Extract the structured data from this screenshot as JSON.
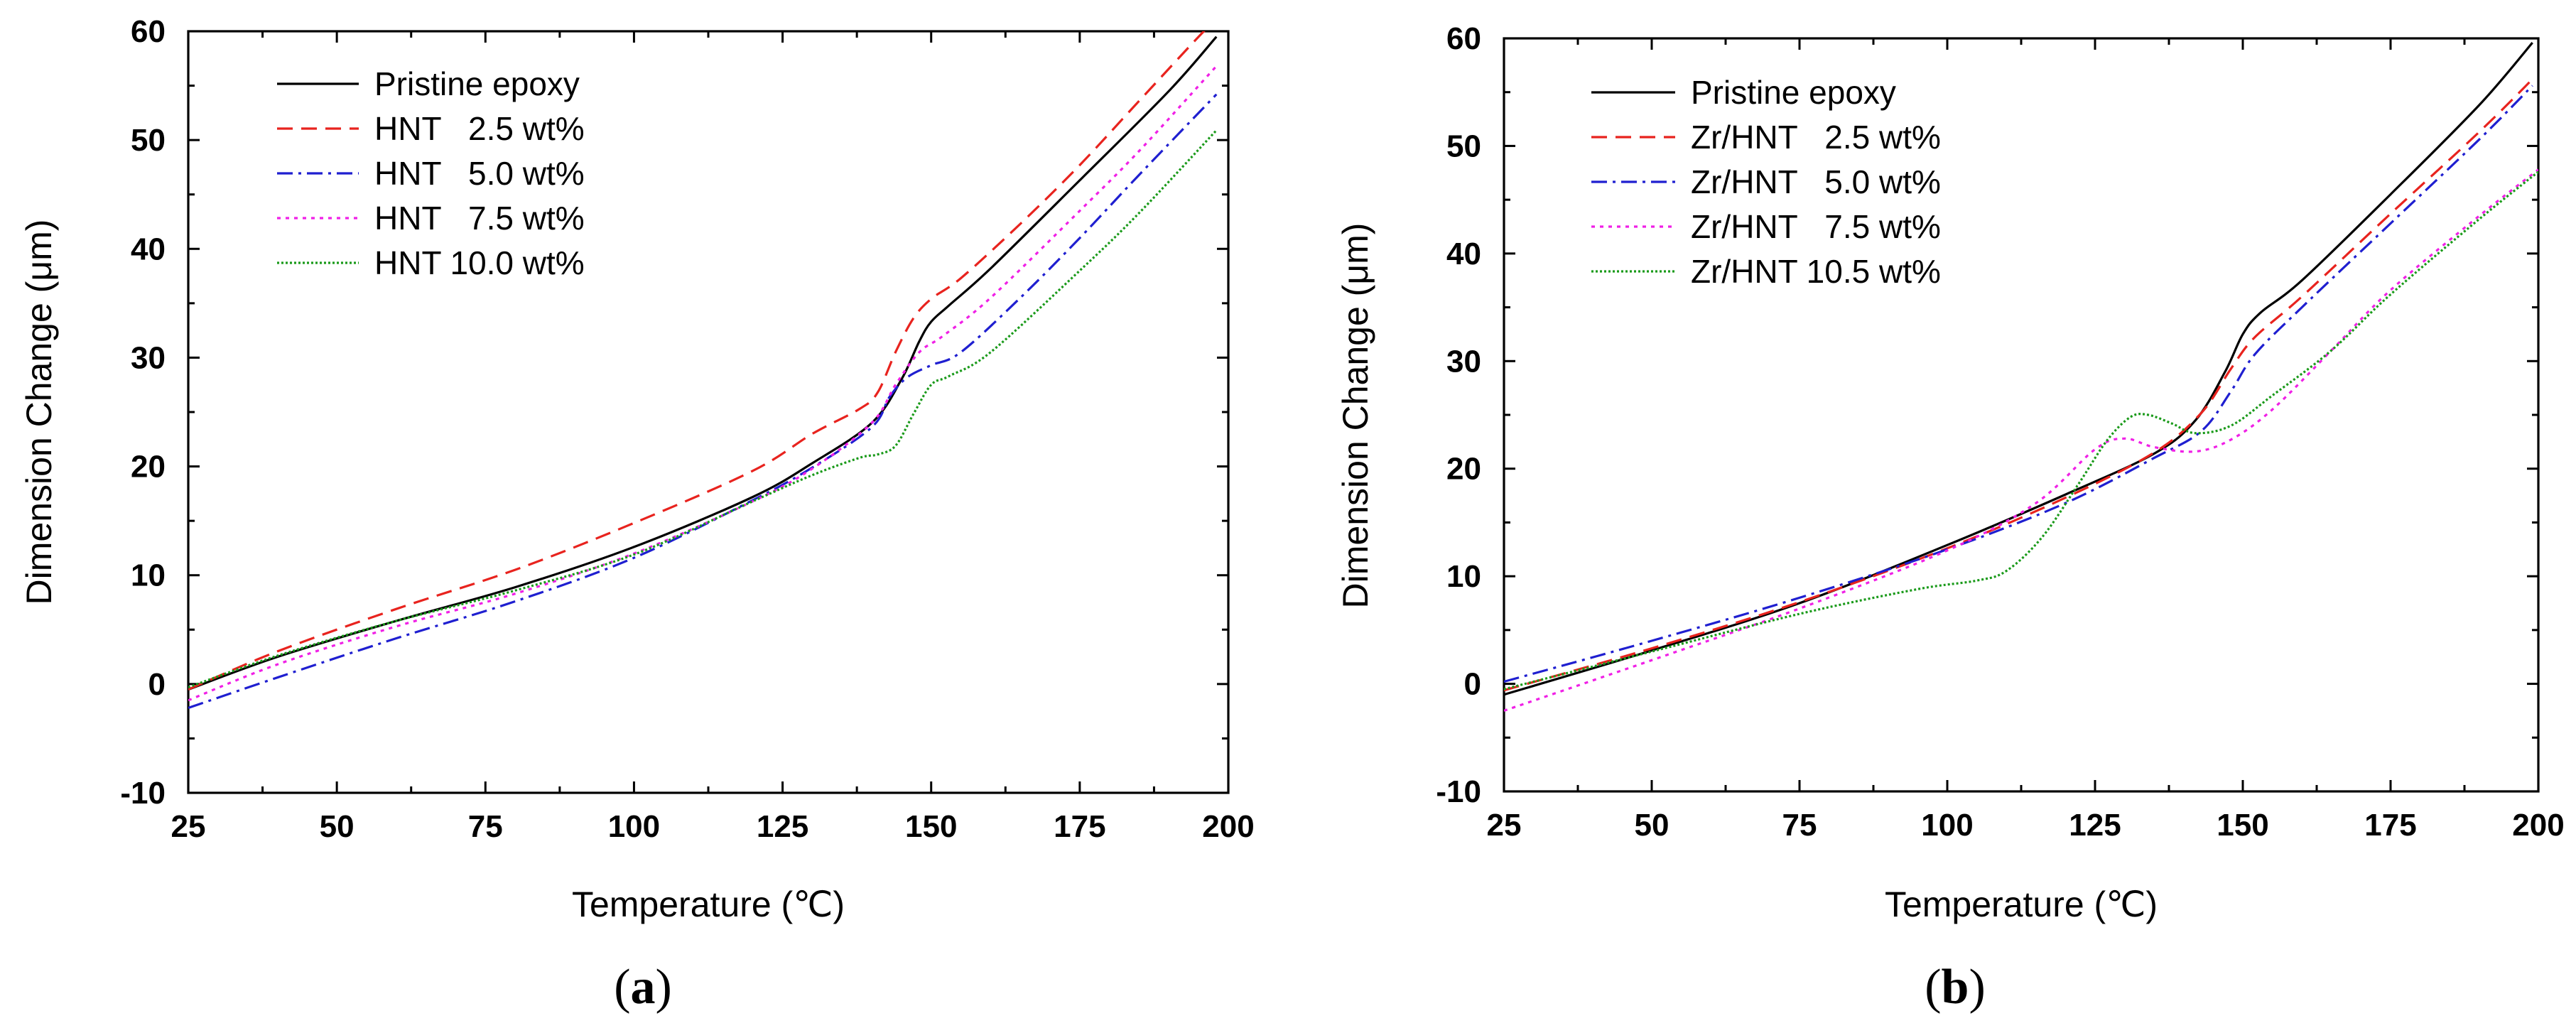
{
  "chart_data": [
    {
      "type": "line",
      "panel": "a",
      "caption_letter": "a",
      "xlabel": "Temperature (℃)",
      "ylabel": "Dimension Change (μm)",
      "xlim": [
        25,
        200
      ],
      "ylim": [
        -10,
        60
      ],
      "xticks": [
        25,
        50,
        75,
        100,
        125,
        150,
        175,
        200
      ],
      "yticks": [
        -10,
        0,
        10,
        20,
        30,
        40,
        50,
        60
      ],
      "legend_position": "top-left",
      "series": [
        {
          "name": "Pristine epoxy",
          "color": "#000000",
          "dash": "solid",
          "points": [
            [
              25,
              -0.5
            ],
            [
              40,
              2.5
            ],
            [
              60,
              5.8
            ],
            [
              80,
              8.9
            ],
            [
              100,
              12.6
            ],
            [
              120,
              17.2
            ],
            [
              130,
              20.3
            ],
            [
              140,
              24.0
            ],
            [
              145,
              28.0
            ],
            [
              148,
              31.5
            ],
            [
              150,
              33.3
            ],
            [
              153,
              34.8
            ],
            [
              160,
              38.2
            ],
            [
              175,
              46.3
            ],
            [
              190,
              54.5
            ],
            [
              198,
              59.5
            ]
          ]
        },
        {
          "name": "HNT   2.5 wt%",
          "color": "#e8231e",
          "dash": "dash",
          "points": [
            [
              25,
              -0.5
            ],
            [
              40,
              3.0
            ],
            [
              60,
              6.9
            ],
            [
              80,
              10.5
            ],
            [
              100,
              14.8
            ],
            [
              120,
              19.6
            ],
            [
              130,
              23.0
            ],
            [
              138,
              25.3
            ],
            [
              141,
              26.8
            ],
            [
              144,
              30.5
            ],
            [
              147,
              33.6
            ],
            [
              150,
              35.4
            ],
            [
              155,
              37.3
            ],
            [
              165,
              42.3
            ],
            [
              175,
              47.7
            ],
            [
              185,
              53.6
            ],
            [
              195,
              59.5
            ],
            [
              197,
              60.5
            ]
          ]
        },
        {
          "name": "HNT   5.0 wt%",
          "color": "#1f1fd0",
          "dash": "dashdot",
          "points": [
            [
              25,
              -2.2
            ],
            [
              40,
              0.6
            ],
            [
              60,
              4.2
            ],
            [
              80,
              7.6
            ],
            [
              100,
              11.6
            ],
            [
              120,
              16.9
            ],
            [
              130,
              19.9
            ],
            [
              140,
              23.6
            ],
            [
              143,
              26.4
            ],
            [
              146,
              28.2
            ],
            [
              150,
              29.3
            ],
            [
              155,
              30.5
            ],
            [
              165,
              35.5
            ],
            [
              175,
              41.0
            ],
            [
              185,
              46.8
            ],
            [
              198,
              54.2
            ]
          ]
        },
        {
          "name": "HNT   7.5 wt%",
          "color": "#f020e6",
          "dash": "dot",
          "points": [
            [
              25,
              -1.5
            ],
            [
              40,
              1.8
            ],
            [
              60,
              5.3
            ],
            [
              80,
              8.3
            ],
            [
              100,
              12.0
            ],
            [
              120,
              16.8
            ],
            [
              130,
              19.8
            ],
            [
              140,
              24.0
            ],
            [
              144,
              27.5
            ],
            [
              148,
              30.5
            ],
            [
              152,
              32.0
            ],
            [
              160,
              35.5
            ],
            [
              175,
              43.5
            ],
            [
              185,
              49.0
            ],
            [
              198,
              56.8
            ]
          ]
        },
        {
          "name": "HNT 10.0 wt%",
          "color": "#1a9a1a",
          "dash": "fine",
          "points": [
            [
              25,
              -0.3
            ],
            [
              40,
              2.6
            ],
            [
              60,
              5.8
            ],
            [
              80,
              8.6
            ],
            [
              100,
              11.9
            ],
            [
              120,
              16.8
            ],
            [
              130,
              19.2
            ],
            [
              138,
              20.8
            ],
            [
              141,
              21.1
            ],
            [
              144,
              21.9
            ],
            [
              147,
              24.8
            ],
            [
              150,
              27.5
            ],
            [
              153,
              28.3
            ],
            [
              160,
              30.5
            ],
            [
              175,
              38.0
            ],
            [
              185,
              43.3
            ],
            [
              198,
              50.9
            ]
          ]
        }
      ]
    },
    {
      "type": "line",
      "panel": "b",
      "caption_letter": "b",
      "xlabel": "Temperature (℃)",
      "ylabel": "Dimension Change (μm)",
      "xlim": [
        25,
        200
      ],
      "ylim": [
        -10,
        60
      ],
      "xticks": [
        25,
        50,
        75,
        100,
        125,
        150,
        175,
        200
      ],
      "yticks": [
        -10,
        0,
        10,
        20,
        30,
        40,
        50,
        60
      ],
      "legend_position": "top-left",
      "series": [
        {
          "name": "Pristine epoxy",
          "color": "#000000",
          "dash": "solid",
          "points": [
            [
              25,
              -1.0
            ],
            [
              50,
              3.1
            ],
            [
              75,
              7.5
            ],
            [
              100,
              12.9
            ],
            [
              120,
              17.6
            ],
            [
              135,
              21.4
            ],
            [
              142,
              24.5
            ],
            [
              147,
              29.0
            ],
            [
              150,
              32.5
            ],
            [
              153,
              34.5
            ],
            [
              160,
              37.5
            ],
            [
              175,
              45.5
            ],
            [
              190,
              53.8
            ],
            [
              199,
              59.6
            ]
          ]
        },
        {
          "name": "Zr/HNT   2.5 wt%",
          "color": "#e8231e",
          "dash": "dash",
          "points": [
            [
              25,
              -0.6
            ],
            [
              50,
              3.3
            ],
            [
              75,
              7.6
            ],
            [
              100,
              12.6
            ],
            [
              120,
              17.3
            ],
            [
              135,
              21.5
            ],
            [
              143,
              25.2
            ],
            [
              148,
              29.3
            ],
            [
              152,
              32.2
            ],
            [
              160,
              36.0
            ],
            [
              175,
              43.7
            ],
            [
              190,
              51.3
            ],
            [
              199,
              56.2
            ]
          ]
        },
        {
          "name": "Zr/HNT   5.0 wt%",
          "color": "#1f1fd0",
          "dash": "dashdot",
          "points": [
            [
              25,
              0.2
            ],
            [
              50,
              4.0
            ],
            [
              75,
              8.0
            ],
            [
              100,
              12.5
            ],
            [
              120,
              16.8
            ],
            [
              135,
              21.0
            ],
            [
              143,
              23.5
            ],
            [
              148,
              27.2
            ],
            [
              152,
              30.6
            ],
            [
              160,
              35.0
            ],
            [
              175,
              42.8
            ],
            [
              190,
              50.6
            ],
            [
              199,
              55.6
            ]
          ]
        },
        {
          "name": "Zr/HNT   7.5 wt%",
          "color": "#f020e6",
          "dash": "dot",
          "points": [
            [
              25,
              -2.5
            ],
            [
              50,
              2.2
            ],
            [
              75,
              7.0
            ],
            [
              100,
              12.4
            ],
            [
              115,
              16.8
            ],
            [
              125,
              21.8
            ],
            [
              130,
              22.8
            ],
            [
              135,
              22.0
            ],
            [
              142,
              21.6
            ],
            [
              148,
              22.7
            ],
            [
              155,
              25.5
            ],
            [
              165,
              31.0
            ],
            [
              175,
              36.6
            ],
            [
              190,
              43.5
            ],
            [
              200,
              47.8
            ]
          ]
        },
        {
          "name": "Zr/HNT 10.5 wt%",
          "color": "#1a9a1a",
          "dash": "fine",
          "points": [
            [
              25,
              -0.5
            ],
            [
              50,
              3.0
            ],
            [
              75,
              6.5
            ],
            [
              95,
              8.8
            ],
            [
              105,
              9.6
            ],
            [
              110,
              10.5
            ],
            [
              116,
              13.6
            ],
            [
              122,
              18.4
            ],
            [
              127,
              22.6
            ],
            [
              131,
              24.8
            ],
            [
              134,
              25.0
            ],
            [
              138,
              24.2
            ],
            [
              142,
              23.3
            ],
            [
              148,
              24.0
            ],
            [
              155,
              26.8
            ],
            [
              165,
              31.0
            ],
            [
              175,
              36.2
            ],
            [
              190,
              43.2
            ],
            [
              200,
              47.6
            ]
          ]
        }
      ]
    }
  ]
}
